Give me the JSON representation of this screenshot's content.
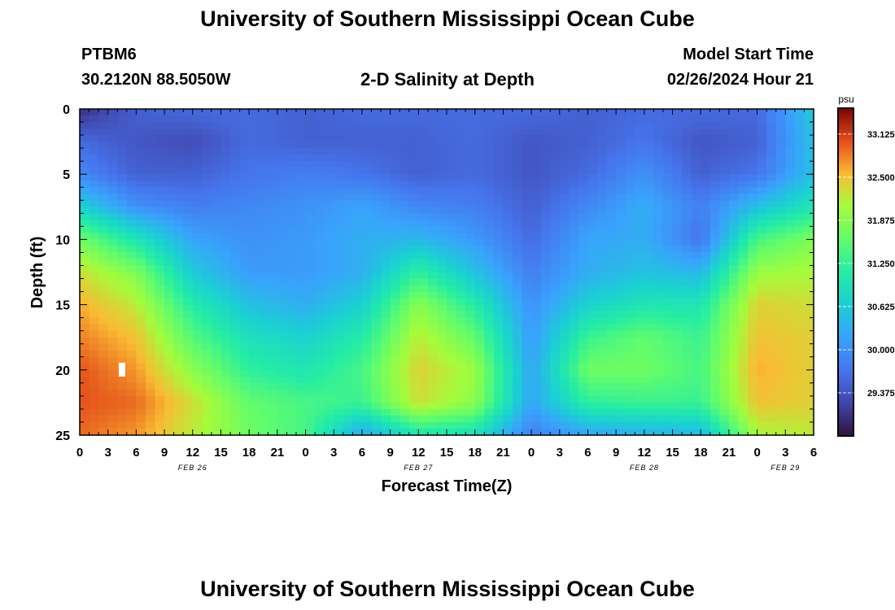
{
  "page": {
    "title": "University of Southern Mississippi Ocean Cube",
    "footer_title": "University of Southern Mississippi Ocean Cube"
  },
  "header": {
    "station": "PTBM6",
    "coords": "30.2120N  88.5050W",
    "plot_title": "2-D Salinity at Depth",
    "model_label": "Model Start Time",
    "model_time": "02/26/2024 Hour 21"
  },
  "chart_data": {
    "type": "heatmap",
    "title": "2-D Salinity at Depth",
    "xlabel": "Forecast Time(Z)",
    "ylabel": "Depth (ft)",
    "x_hours_range": [
      0,
      78
    ],
    "x_tick_labels": [
      "0",
      "3",
      "6",
      "9",
      "12",
      "15",
      "18",
      "21",
      "0",
      "3",
      "6",
      "9",
      "12",
      "15",
      "18",
      "21",
      "0",
      "3",
      "6",
      "9",
      "12",
      "15",
      "18",
      "21",
      "0",
      "3",
      "6"
    ],
    "day_labels": [
      {
        "label": "FEB 26",
        "hour": 12
      },
      {
        "label": "FEB 27",
        "hour": 36
      },
      {
        "label": "FEB 28",
        "hour": 60
      },
      {
        "label": "FEB 29",
        "hour": 75
      }
    ],
    "y_ticks": [
      0,
      5,
      10,
      15,
      20,
      25
    ],
    "ylim": [
      0,
      25
    ],
    "y_inverted": true,
    "colorbar": {
      "unit": "psu",
      "ticks": [
        "33.125",
        "32.500",
        "31.875",
        "31.250",
        "30.625",
        "30.000",
        "29.375"
      ],
      "range": [
        28.75,
        33.5
      ]
    },
    "depth_levels_ft": [
      0,
      2.5,
      5,
      7.5,
      10,
      12.5,
      15,
      17.5,
      20,
      22.5,
      25
    ],
    "time_hours": [
      0,
      6,
      12,
      18,
      24,
      30,
      36,
      42,
      48,
      54,
      60,
      66,
      72,
      78
    ],
    "salinity_psu": [
      [
        29.0,
        29.5,
        29.6,
        29.6,
        29.5,
        29.6,
        29.6,
        29.6,
        29.6,
        29.5,
        29.6,
        29.6,
        29.6,
        30.6
      ],
      [
        29.6,
        29.4,
        29.3,
        29.6,
        29.5,
        29.5,
        29.5,
        29.6,
        29.4,
        29.5,
        29.7,
        29.4,
        29.5,
        30.5
      ],
      [
        29.9,
        29.5,
        29.5,
        29.7,
        29.8,
        29.7,
        29.5,
        29.6,
        29.4,
        29.6,
        30.0,
        29.5,
        29.7,
        30.5
      ],
      [
        30.7,
        30.0,
        29.8,
        29.9,
        30.0,
        30.2,
        29.9,
        29.8,
        29.5,
        29.9,
        30.3,
        29.8,
        30.5,
        31.0
      ],
      [
        31.7,
        31.0,
        30.2,
        30.0,
        30.1,
        30.3,
        30.4,
        30.1,
        29.6,
        30.2,
        30.3,
        29.7,
        31.4,
        31.8
      ],
      [
        32.3,
        31.8,
        30.6,
        30.1,
        30.1,
        30.3,
        31.2,
        30.5,
        29.8,
        30.3,
        30.5,
        30.4,
        32.0,
        32.1
      ],
      [
        32.6,
        32.2,
        31.1,
        30.5,
        30.3,
        30.7,
        31.9,
        31.1,
        30.0,
        30.7,
        31.0,
        31.0,
        32.4,
        32.3
      ],
      [
        32.8,
        32.5,
        31.5,
        30.9,
        30.7,
        31.1,
        32.2,
        31.6,
        30.1,
        31.3,
        31.6,
        31.3,
        32.5,
        32.4
      ],
      [
        33.0,
        32.7,
        31.9,
        31.2,
        31.0,
        31.4,
        32.4,
        32.0,
        30.2,
        31.7,
        31.7,
        31.4,
        32.6,
        32.4
      ],
      [
        33.0,
        32.9,
        32.3,
        31.6,
        31.4,
        31.3,
        32.3,
        31.9,
        30.2,
        31.2,
        31.3,
        31.3,
        32.5,
        32.4
      ],
      [
        32.9,
        32.7,
        32.2,
        31.7,
        31.4,
        30.2,
        31.0,
        30.9,
        29.8,
        30.2,
        30.3,
        30.4,
        32.1,
        32.2
      ]
    ]
  }
}
